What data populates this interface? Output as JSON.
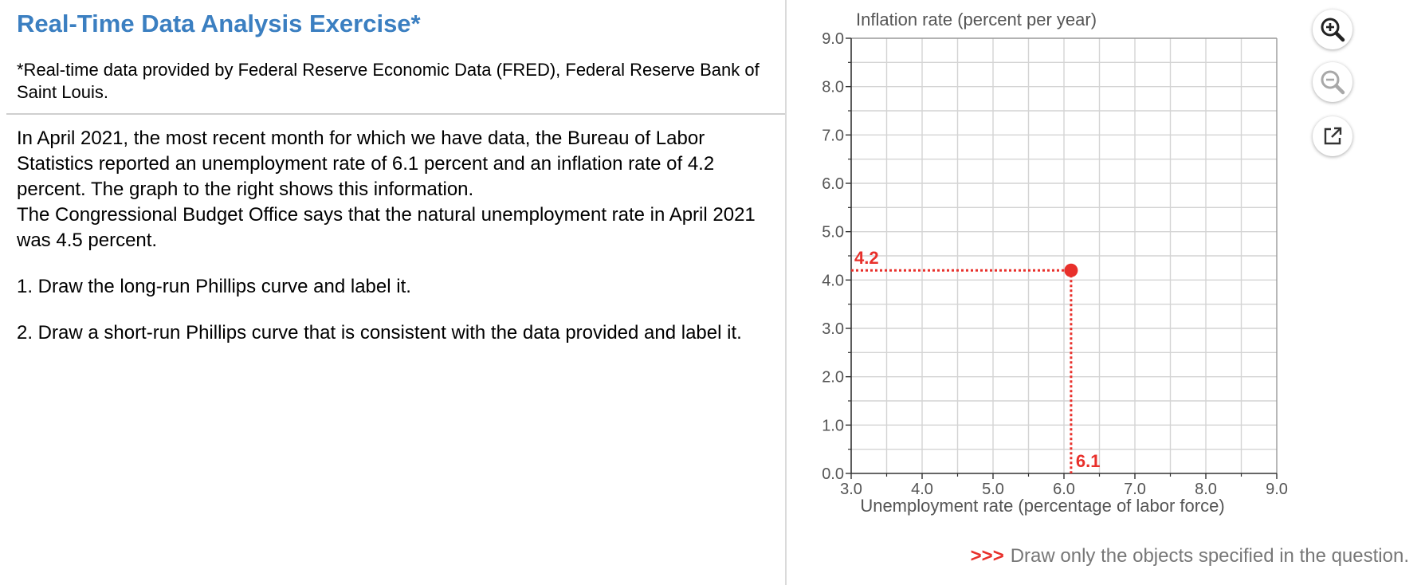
{
  "exercise": {
    "title": "Real-Time Data Analysis Exercise*",
    "footnote": "*Real-time data provided by Federal Reserve Economic Data (FRED), Federal Reserve Bank of Saint Louis.",
    "paragraph1": "In April 2021, the most recent month for which we have data, the Bureau of Labor Statistics reported an unemployment rate of 6.1 percent and an inflation rate of 4.2 percent. The graph to the right shows this information.",
    "paragraph2": "The Congressional Budget Office says that the natural unemployment rate in April 2021 was 4.5 percent.",
    "step1": "1. Draw the long-run Phillips curve and label it.",
    "step2": "2. Draw a short-run Phillips curve that is consistent with the data provided and label it."
  },
  "toolbar": {
    "zoom_in_icon": "zoom-in-icon",
    "zoom_out_icon": "zoom-out-icon",
    "popout_icon": "external-link-icon"
  },
  "instruction": {
    "prefix": ">>>",
    "text": "Draw only the objects specified in the question."
  },
  "chart_data": {
    "type": "scatter",
    "title": "",
    "ylabel": "Inflation rate (percent per year)",
    "xlabel": "Unemployment rate (percentage of labor force)",
    "xlim": [
      3.0,
      9.0
    ],
    "ylim": [
      0.0,
      9.0
    ],
    "x_ticks": [
      "3.0",
      "4.0",
      "5.0",
      "6.0",
      "7.0",
      "8.0",
      "9.0"
    ],
    "y_ticks": [
      "0.0",
      "1.0",
      "2.0",
      "3.0",
      "4.0",
      "5.0",
      "6.0",
      "7.0",
      "8.0",
      "9.0"
    ],
    "grid": true,
    "point": {
      "x": 6.1,
      "y": 4.2
    },
    "point_x_label": "6.1",
    "point_y_label": "4.2",
    "point_color": "#e8302b"
  }
}
